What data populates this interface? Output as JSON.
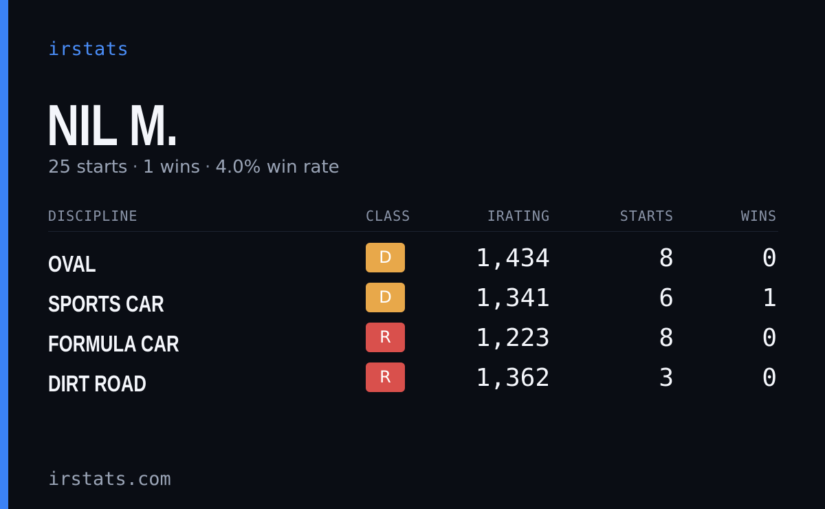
{
  "brand": "irstats",
  "player": {
    "name": "NIL M.",
    "starts_text": "25 starts",
    "wins_text": "1 wins",
    "winrate_text": "4.0% win rate",
    "separator": "·"
  },
  "table": {
    "headers": {
      "discipline": "DISCIPLINE",
      "class": "CLASS",
      "irating": "IRATING",
      "starts": "STARTS",
      "wins": "WINS"
    },
    "rows": [
      {
        "discipline": "OVAL",
        "class": "D",
        "class_color": "#e8a84a",
        "irating": "1,434",
        "starts": "8",
        "wins": "0"
      },
      {
        "discipline": "SPORTS CAR",
        "class": "D",
        "class_color": "#e8a84a",
        "irating": "1,341",
        "starts": "6",
        "wins": "1"
      },
      {
        "discipline": "FORMULA CAR",
        "class": "R",
        "class_color": "#d9504c",
        "irating": "1,223",
        "starts": "8",
        "wins": "0"
      },
      {
        "discipline": "DIRT ROAD",
        "class": "R",
        "class_color": "#d9504c",
        "irating": "1,362",
        "starts": "3",
        "wins": "0"
      }
    ]
  },
  "footer": "irstats.com",
  "colors": {
    "background": "#0a0d14",
    "accent": "#3b82f6",
    "brand_text": "#4a8df7",
    "class_d": "#e8a84a",
    "class_r": "#d9504c"
  }
}
